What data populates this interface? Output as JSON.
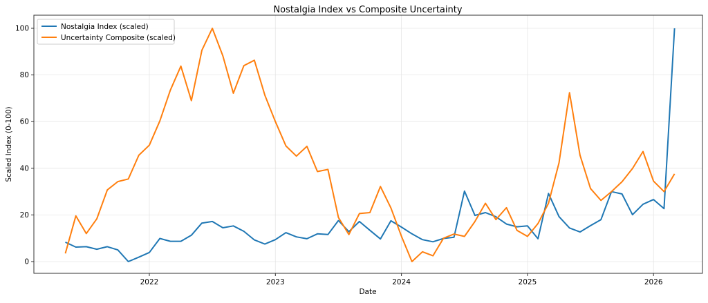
{
  "chart_data": {
    "type": "line",
    "title": "Nostalgia Index vs Composite Uncertainty",
    "xlabel": "Date",
    "ylabel": "Scaled Index (0-100)",
    "ylim": [
      -5,
      105
    ],
    "yticks": [
      0,
      20,
      40,
      60,
      80,
      100
    ],
    "xticks": [
      "2022",
      "2023",
      "2024",
      "2025",
      "2026"
    ],
    "grid": true,
    "legend_position": "top-left",
    "x": [
      "2021-05",
      "2021-06",
      "2021-07",
      "2021-08",
      "2021-09",
      "2021-10",
      "2021-11",
      "2021-12",
      "2022-01",
      "2022-02",
      "2022-03",
      "2022-04",
      "2022-05",
      "2022-06",
      "2022-07",
      "2022-08",
      "2022-09",
      "2022-10",
      "2022-11",
      "2022-12",
      "2023-01",
      "2023-02",
      "2023-03",
      "2023-04",
      "2023-05",
      "2023-06",
      "2023-07",
      "2023-08",
      "2023-09",
      "2023-10",
      "2023-11",
      "2023-12",
      "2024-01",
      "2024-02",
      "2024-03",
      "2024-04",
      "2024-05",
      "2024-06",
      "2024-07",
      "2024-08",
      "2024-09",
      "2024-10",
      "2024-11",
      "2024-12",
      "2025-01",
      "2025-02",
      "2025-03",
      "2025-04",
      "2025-05",
      "2025-06",
      "2025-07",
      "2025-08",
      "2025-09",
      "2025-10",
      "2025-11",
      "2025-12",
      "2026-01",
      "2026-02",
      "2026-03"
    ],
    "series": [
      {
        "name": "Nostalgia Index (scaled)",
        "color": "#1f77b4",
        "values": [
          8.3,
          6.2,
          6.4,
          5.3,
          6.4,
          5.0,
          0,
          1.9,
          3.9,
          9.9,
          8.7,
          8.7,
          11.3,
          16.5,
          17.2,
          14.5,
          15.3,
          13.0,
          9.3,
          7.5,
          9.4,
          12.4,
          10.6,
          9.8,
          11.9,
          11.6,
          17.6,
          12.8,
          17.2,
          13.4,
          9.7,
          17.5,
          14.8,
          11.9,
          9.4,
          8.5,
          9.9,
          10.4,
          30.2,
          19.8,
          21.0,
          19.2,
          16.1,
          14.9,
          15.3,
          9.8,
          29.2,
          19.3,
          14.4,
          12.7,
          15.4,
          18.0,
          30.0,
          29.0,
          20.1,
          24.6,
          26.6,
          22.7,
          100
        ]
      },
      {
        "name": "Uncertainty Composite (scaled)",
        "color": "#ff7f0e",
        "values": [
          3.5,
          19.6,
          12.0,
          18.3,
          30.7,
          34.3,
          35.4,
          45.6,
          49.9,
          60.3,
          73.5,
          83.8,
          69.0,
          90.6,
          100,
          88.2,
          72.2,
          84.0,
          86.3,
          71.3,
          60.0,
          49.6,
          45.2,
          49.4,
          38.6,
          39.5,
          18.9,
          11.6,
          20.6,
          21.0,
          32.2,
          23.0,
          10.9,
          0,
          4.2,
          2.5,
          10.0,
          11.8,
          10.8,
          17.2,
          25.0,
          18.0,
          23.1,
          13.4,
          10.8,
          16.3,
          25.0,
          42.3,
          72.4,
          45.6,
          31.3,
          26.2,
          30.0,
          34.2,
          39.9,
          47.2,
          34.5,
          30.0,
          37.6
        ]
      }
    ]
  }
}
